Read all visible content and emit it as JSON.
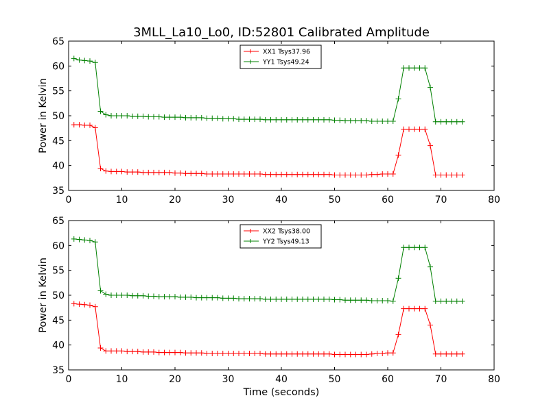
{
  "title": "3MLL_La10_Lo0, ID:52801 Calibrated Amplitude",
  "chart_data": [
    {
      "type": "line",
      "title": "3MLL_La10_Lo0, ID:52801 Calibrated Amplitude",
      "xlabel": "",
      "ylabel": "Power in Kelvin",
      "xlim": [
        0,
        80
      ],
      "ylim": [
        35,
        65
      ],
      "xticks": [
        "0",
        "10",
        "20",
        "30",
        "40",
        "50",
        "60",
        "70",
        "80"
      ],
      "yticks": [
        "35",
        "40",
        "45",
        "50",
        "55",
        "60",
        "65"
      ],
      "grid": false,
      "legend": "top-center",
      "x": [
        1,
        2,
        3,
        4,
        5,
        6,
        7,
        8,
        9,
        10,
        11,
        12,
        13,
        14,
        15,
        16,
        17,
        18,
        19,
        20,
        21,
        22,
        23,
        24,
        25,
        26,
        27,
        28,
        29,
        30,
        31,
        32,
        33,
        34,
        35,
        36,
        37,
        38,
        39,
        40,
        41,
        42,
        43,
        44,
        45,
        46,
        47,
        48,
        49,
        50,
        51,
        52,
        53,
        54,
        55,
        56,
        57,
        58,
        59,
        60,
        61,
        62,
        63,
        64,
        65,
        66,
        67,
        68,
        69,
        70,
        71,
        72,
        73,
        74
      ],
      "series": [
        {
          "name": "XX1 Tsys37.96",
          "color": "#ff0000",
          "values": [
            48.2,
            48.2,
            48.1,
            48.1,
            47.6,
            39.4,
            38.9,
            38.8,
            38.8,
            38.8,
            38.7,
            38.7,
            38.7,
            38.6,
            38.6,
            38.6,
            38.6,
            38.6,
            38.6,
            38.5,
            38.5,
            38.4,
            38.4,
            38.4,
            38.4,
            38.3,
            38.3,
            38.3,
            38.3,
            38.3,
            38.3,
            38.3,
            38.3,
            38.3,
            38.3,
            38.3,
            38.2,
            38.2,
            38.2,
            38.2,
            38.2,
            38.2,
            38.2,
            38.2,
            38.2,
            38.2,
            38.2,
            38.2,
            38.2,
            38.1,
            38.1,
            38.1,
            38.1,
            38.1,
            38.1,
            38.1,
            38.2,
            38.2,
            38.3,
            38.3,
            38.3,
            42.1,
            47.3,
            47.3,
            47.3,
            47.3,
            47.3,
            44.0,
            38.1,
            38.1,
            38.1,
            38.1,
            38.1,
            38.1
          ]
        },
        {
          "name": "YY1 Tsys49.24",
          "color": "#008000",
          "values": [
            61.5,
            61.2,
            61.1,
            61.0,
            60.7,
            50.9,
            50.2,
            50.0,
            50.0,
            50.0,
            50.0,
            49.9,
            49.9,
            49.9,
            49.8,
            49.8,
            49.8,
            49.7,
            49.7,
            49.7,
            49.7,
            49.6,
            49.6,
            49.6,
            49.6,
            49.5,
            49.5,
            49.5,
            49.4,
            49.4,
            49.4,
            49.3,
            49.3,
            49.3,
            49.3,
            49.3,
            49.2,
            49.2,
            49.2,
            49.2,
            49.2,
            49.2,
            49.2,
            49.2,
            49.2,
            49.2,
            49.2,
            49.2,
            49.2,
            49.1,
            49.1,
            49.0,
            49.0,
            49.0,
            49.0,
            49.0,
            48.9,
            48.9,
            48.9,
            48.9,
            48.9,
            53.4,
            59.6,
            59.6,
            59.6,
            59.6,
            59.6,
            55.7,
            48.8,
            48.8,
            48.8,
            48.8,
            48.8,
            48.8
          ]
        }
      ]
    },
    {
      "type": "line",
      "title": "",
      "xlabel": "Time (seconds)",
      "ylabel": "Power in Kelvin",
      "xlim": [
        0,
        80
      ],
      "ylim": [
        35,
        65
      ],
      "xticks": [
        "0",
        "10",
        "20",
        "30",
        "40",
        "50",
        "60",
        "70",
        "80"
      ],
      "yticks": [
        "35",
        "40",
        "45",
        "50",
        "55",
        "60",
        "65"
      ],
      "grid": false,
      "legend": "top-center",
      "x": [
        1,
        2,
        3,
        4,
        5,
        6,
        7,
        8,
        9,
        10,
        11,
        12,
        13,
        14,
        15,
        16,
        17,
        18,
        19,
        20,
        21,
        22,
        23,
        24,
        25,
        26,
        27,
        28,
        29,
        30,
        31,
        32,
        33,
        34,
        35,
        36,
        37,
        38,
        39,
        40,
        41,
        42,
        43,
        44,
        45,
        46,
        47,
        48,
        49,
        50,
        51,
        52,
        53,
        54,
        55,
        56,
        57,
        58,
        59,
        60,
        61,
        62,
        63,
        64,
        65,
        66,
        67,
        68,
        69,
        70,
        71,
        72,
        73,
        74
      ],
      "series": [
        {
          "name": "XX2 Tsys38.00",
          "color": "#ff0000",
          "values": [
            48.3,
            48.2,
            48.1,
            48.0,
            47.7,
            39.4,
            38.8,
            38.8,
            38.8,
            38.8,
            38.7,
            38.7,
            38.7,
            38.6,
            38.6,
            38.6,
            38.5,
            38.5,
            38.5,
            38.5,
            38.5,
            38.4,
            38.4,
            38.4,
            38.4,
            38.3,
            38.3,
            38.3,
            38.3,
            38.3,
            38.3,
            38.3,
            38.3,
            38.3,
            38.3,
            38.3,
            38.2,
            38.2,
            38.2,
            38.2,
            38.2,
            38.2,
            38.2,
            38.2,
            38.2,
            38.2,
            38.2,
            38.2,
            38.2,
            38.1,
            38.1,
            38.1,
            38.1,
            38.1,
            38.1,
            38.1,
            38.2,
            38.3,
            38.3,
            38.4,
            38.4,
            42.1,
            47.3,
            47.3,
            47.3,
            47.3,
            47.3,
            44.0,
            38.2,
            38.2,
            38.2,
            38.2,
            38.2,
            38.2
          ]
        },
        {
          "name": "YY2 Tsys49.13",
          "color": "#008000",
          "values": [
            61.3,
            61.2,
            61.1,
            61.0,
            60.7,
            50.9,
            50.2,
            50.0,
            50.0,
            50.0,
            50.0,
            49.9,
            49.9,
            49.9,
            49.8,
            49.8,
            49.7,
            49.7,
            49.7,
            49.7,
            49.6,
            49.6,
            49.6,
            49.5,
            49.5,
            49.5,
            49.5,
            49.5,
            49.4,
            49.4,
            49.4,
            49.3,
            49.3,
            49.3,
            49.3,
            49.3,
            49.2,
            49.2,
            49.2,
            49.2,
            49.2,
            49.2,
            49.2,
            49.2,
            49.2,
            49.2,
            49.2,
            49.2,
            49.2,
            49.1,
            49.1,
            49.0,
            49.0,
            49.0,
            49.0,
            49.0,
            48.9,
            48.9,
            48.9,
            48.9,
            48.8,
            53.4,
            59.6,
            59.6,
            59.6,
            59.6,
            59.6,
            55.7,
            48.8,
            48.8,
            48.8,
            48.8,
            48.8,
            48.8
          ]
        }
      ]
    }
  ]
}
